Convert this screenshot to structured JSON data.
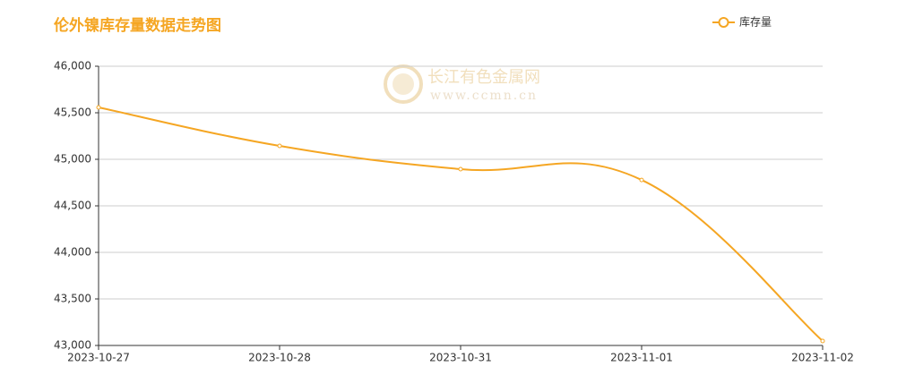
{
  "chart_data": {
    "type": "line",
    "title": "伦外镍库存量数据走势图",
    "watermark": {
      "name": "长江有色金属网",
      "url": "www.ccmn.cn"
    },
    "categories": [
      "2023-10-27",
      "2023-10-28",
      "2023-10-31",
      "2023-11-01",
      "2023-11-02"
    ],
    "series": [
      {
        "name": "库存量",
        "color": "#f5a623",
        "values": [
          45558,
          45144,
          44894,
          44778,
          43048
        ]
      }
    ],
    "ylim": [
      43000,
      46000
    ],
    "yticks": [
      {
        "value": 43000,
        "label": "43,000"
      },
      {
        "value": 43500,
        "label": "43,500"
      },
      {
        "value": 44000,
        "label": "44,000"
      },
      {
        "value": 44500,
        "label": "44,500"
      },
      {
        "value": 45000,
        "label": "45,000"
      },
      {
        "value": 45500,
        "label": "45,500"
      },
      {
        "value": 46000,
        "label": "46,000"
      }
    ],
    "grid": true,
    "legend": "top-right",
    "smooth": true
  }
}
